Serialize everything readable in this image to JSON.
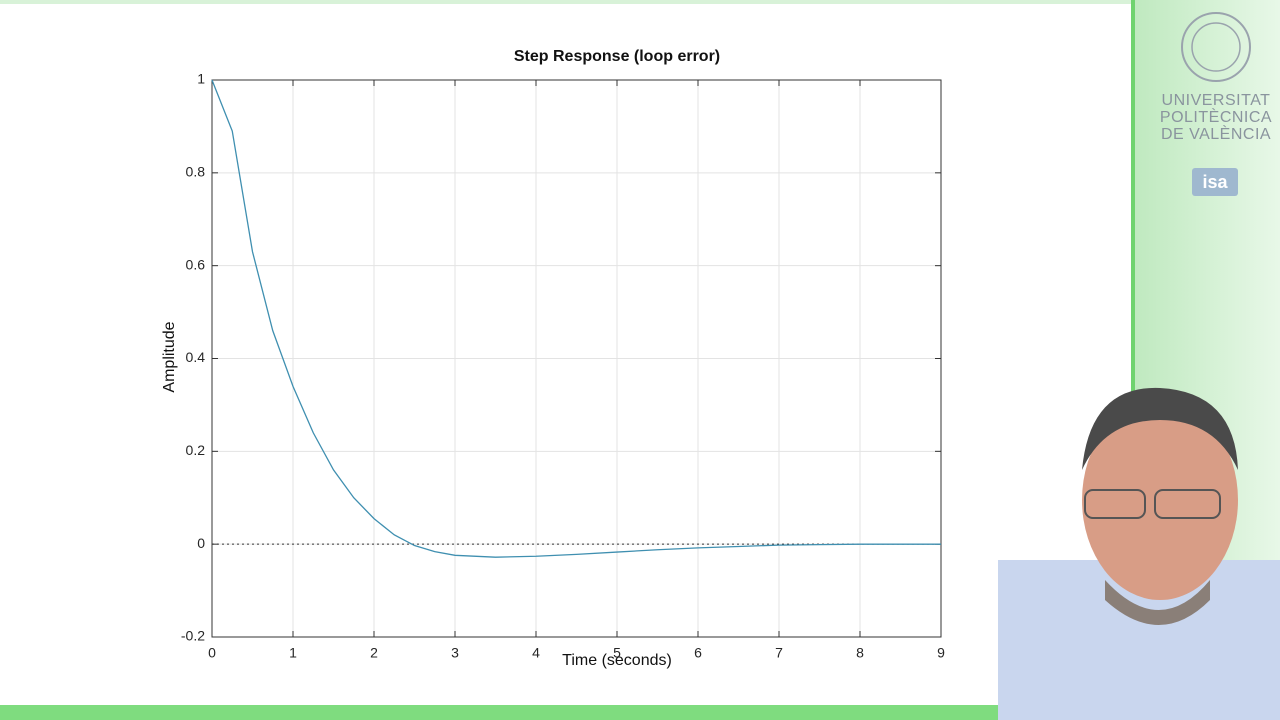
{
  "chart_data": {
    "type": "line",
    "title": "Step Response (loop error)",
    "xlabel": "Time (seconds)",
    "ylabel": "Amplitude",
    "x": [
      0,
      0.25,
      0.5,
      0.75,
      1,
      1.25,
      1.5,
      1.75,
      2,
      2.25,
      2.5,
      2.75,
      3,
      3.5,
      4,
      4.5,
      5,
      5.5,
      6,
      6.5,
      7,
      7.5,
      8,
      8.5,
      9
    ],
    "series": [
      {
        "name": "loop error",
        "color": "#3f8fb0",
        "values": [
          1,
          0.89,
          0.63,
          0.46,
          0.34,
          0.24,
          0.16,
          0.1,
          0.055,
          0.02,
          -0.003,
          -0.016,
          -0.024,
          -0.028,
          -0.026,
          -0.022,
          -0.017,
          -0.012,
          -0.008,
          -0.005,
          -0.002,
          -0.001,
          0,
          0,
          0
        ]
      }
    ],
    "xlim": [
      0,
      9
    ],
    "ylim": [
      -0.2,
      1
    ],
    "xticks": [
      0,
      1,
      2,
      3,
      4,
      5,
      6,
      7,
      8,
      9
    ],
    "yticks": [
      -0.2,
      0,
      0.2,
      0.4,
      0.6,
      0.8,
      1
    ],
    "grid": true
  },
  "branding": {
    "lines": [
      "UNIVERSITAT",
      "POLITÈCNICA",
      "DE VALÈNCIA"
    ],
    "badge": "isa"
  }
}
